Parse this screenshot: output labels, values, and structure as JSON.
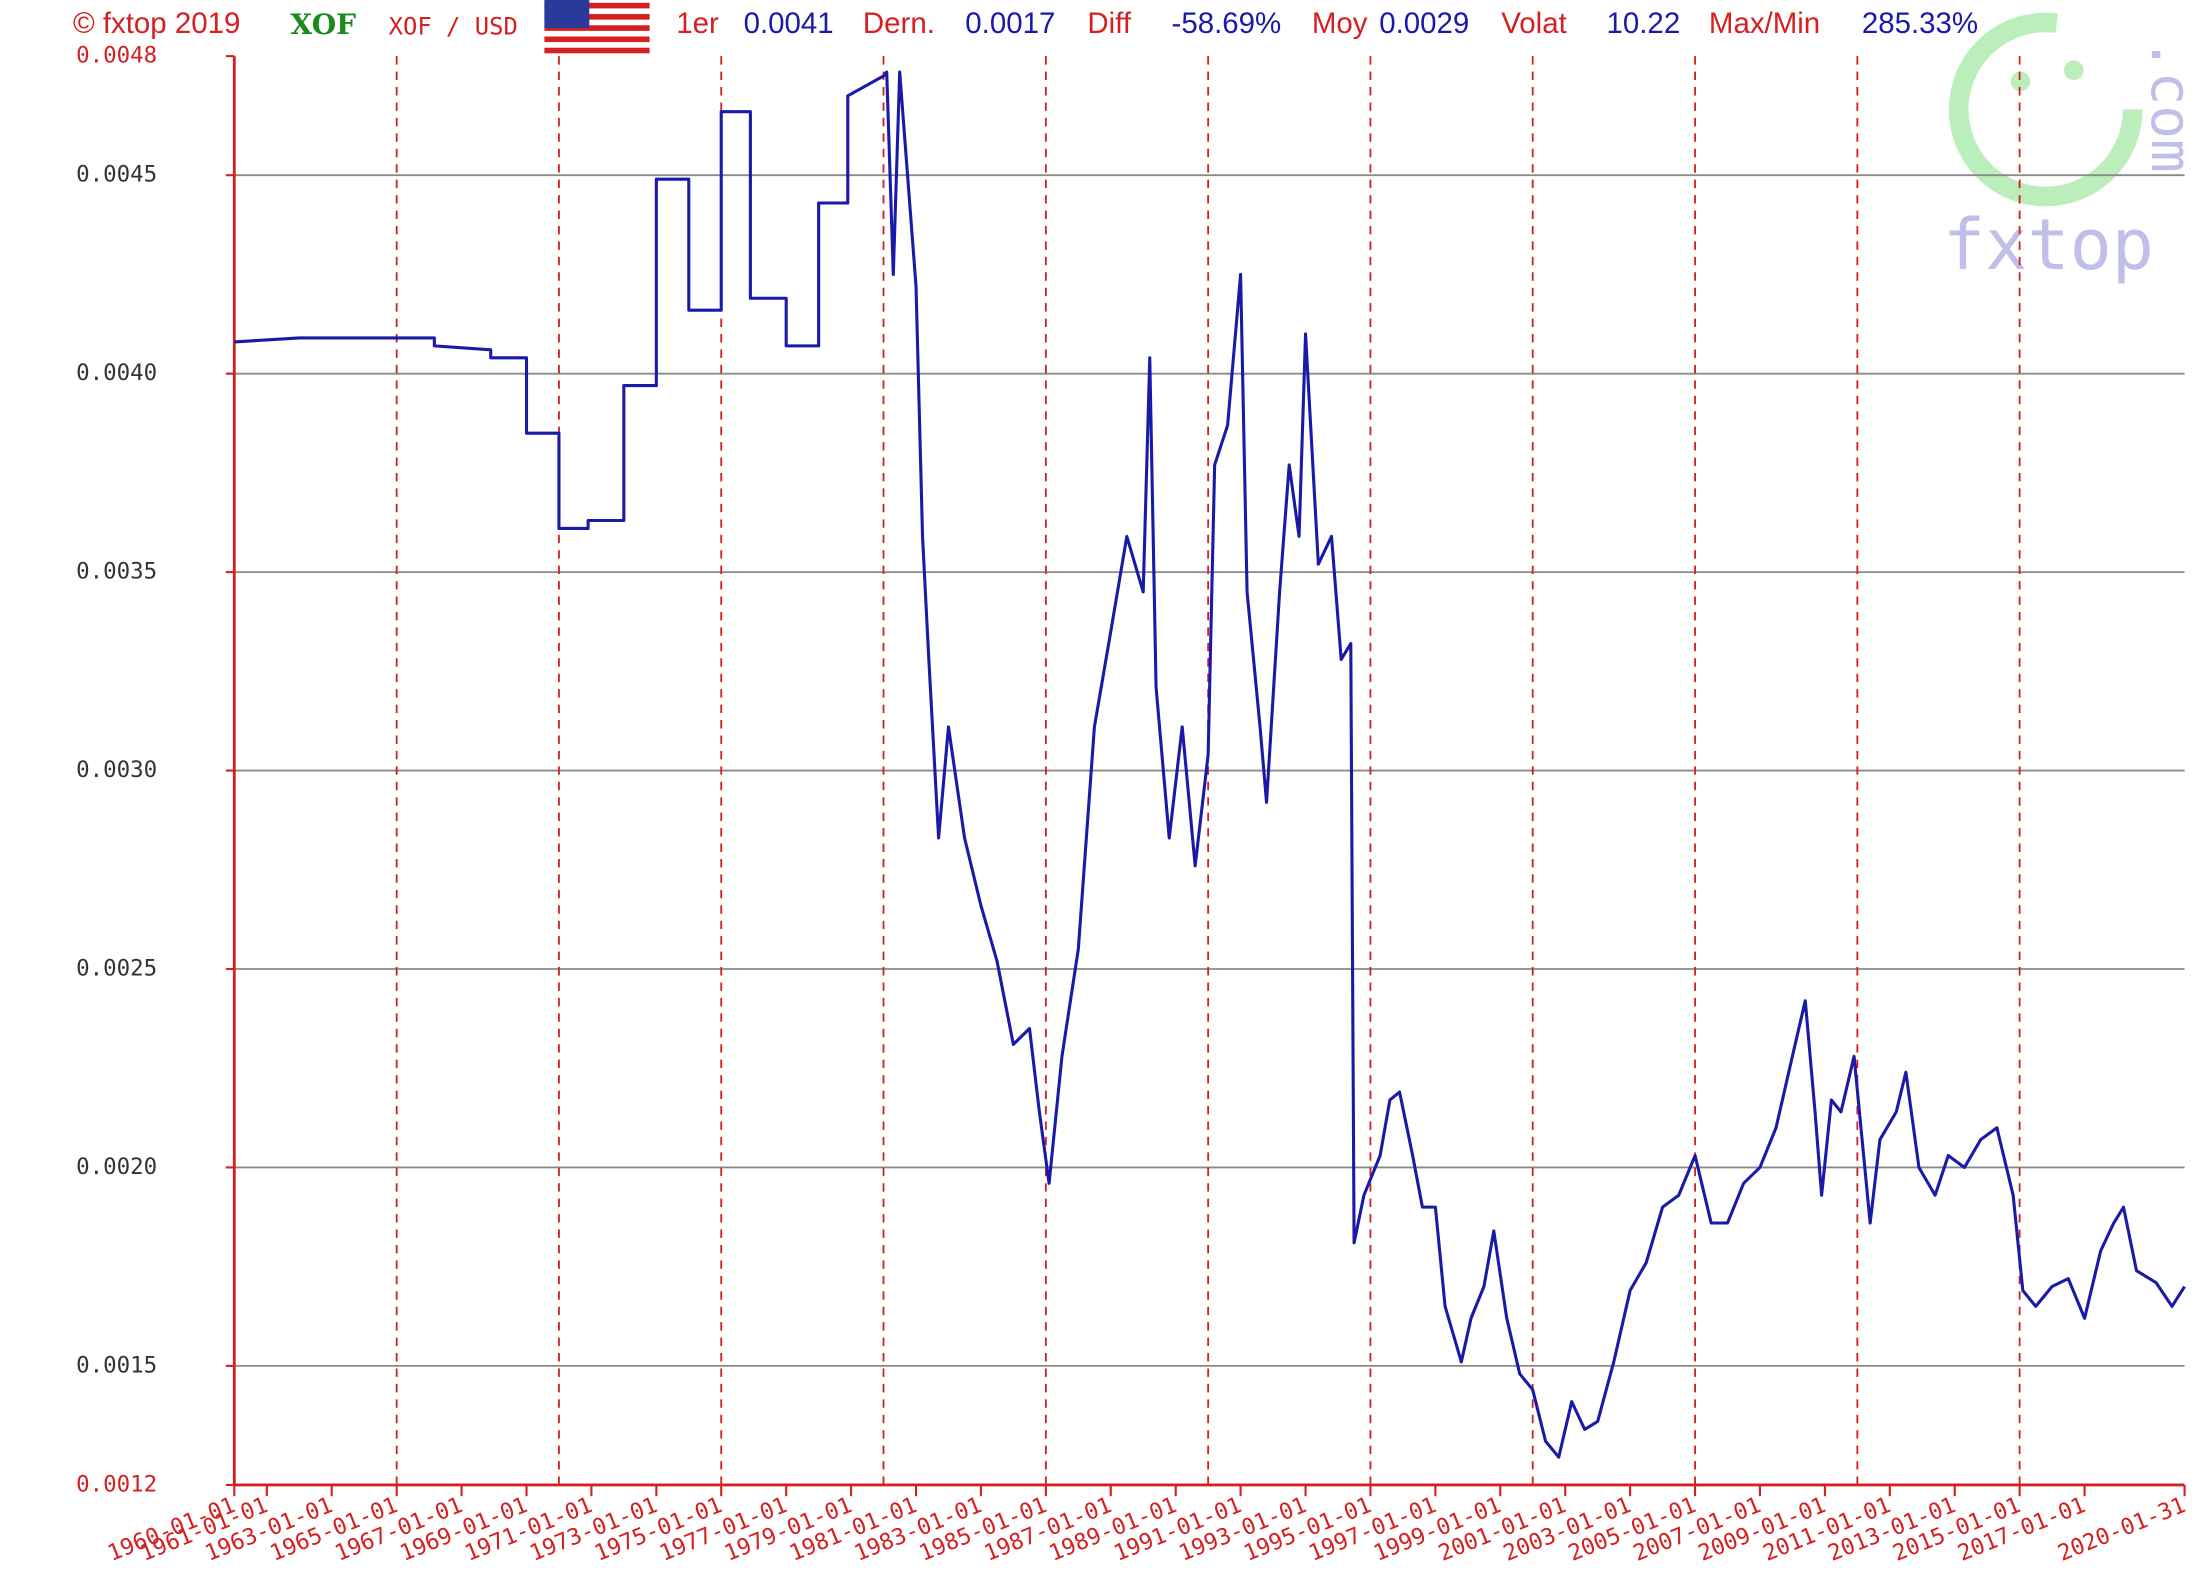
{
  "header": {
    "copyright": "© fxtop 2019",
    "currency": "XOF",
    "pair": "XOF / USD",
    "stats": [
      {
        "label": "1er",
        "value": "0.0041"
      },
      {
        "label": "Dern.",
        "value": "0.0017"
      },
      {
        "label": "Diff",
        "value": "-58.69%"
      },
      {
        "label": "Moy",
        "value": "0.0029"
      },
      {
        "label": "Volat",
        "value": "10.22"
      },
      {
        "label": "Max/Min",
        "value": "285.33%"
      }
    ],
    "watermark": "fxtop",
    "watermark_domain": ".com"
  },
  "chart_data": {
    "type": "line",
    "color": "#1a1aa8",
    "grid": true,
    "ylim": [
      0.0012,
      0.0048
    ],
    "yticks": [
      0.0012,
      0.0015,
      {
        "value": 0.002,
        "label": "0.0020"
      },
      0.0025,
      {
        "value": 0.003,
        "label": "0.0030"
      },
      0.0035,
      {
        "value": 0.004,
        "label": "0.0040"
      },
      0.0045,
      0.0048
    ],
    "xlim": [
      "1960-01-01",
      "2020-01-31"
    ],
    "xticks": [
      "1960-01-01",
      "1961-01-01",
      "1963-01-01",
      "1965-01-01",
      "1967-01-01",
      "1969-01-01",
      "1971-01-01",
      "1973-01-01",
      "1975-01-01",
      "1977-01-01",
      "1979-01-01",
      "1981-01-01",
      "1983-01-01",
      "1985-01-01",
      "1987-01-01",
      "1989-01-01",
      "1991-01-01",
      "1993-01-01",
      "1995-01-01",
      "1997-01-01",
      "1999-01-01",
      "2001-01-01",
      "2003-01-01",
      "2005-01-01",
      "2007-01-01",
      "2009-01-01",
      "2011-01-01",
      "2013-01-01",
      "2015-01-01",
      "2017-01-01",
      "2020-01-31"
    ],
    "xgrid": [
      "1965-01-01",
      "1970-01-01",
      "1975-01-01",
      "1980-01-01",
      "1985-01-01",
      "1990-01-01",
      "1995-01-01",
      "2000-01-01",
      "2005-01-01",
      "2010-01-01",
      "2015-01-01"
    ],
    "x": [
      "1960-01-01",
      "1962-01-01",
      "1966-03-01",
      "1966-03-01",
      "1967-11-25",
      "1967-11-25",
      "1969-01-01",
      "1969-01-01",
      "1970-01-01",
      "1970-01-01",
      "1970-11-25",
      "1970-11-25",
      "1972-01-01",
      "1972-01-01",
      "1973-01-01",
      "1973-01-01",
      "1974-01-01",
      "1974-01-01",
      "1975-01-01",
      "1975-01-01",
      "1975-11-25",
      "1975-11-25",
      "1977-01-01",
      "1977-01-01",
      "1978-01-01",
      "1978-01-01",
      "1978-11-25",
      "1978-11-25",
      "1980-01-01",
      "1980-02-06",
      "1980-04-20",
      "1980-07-01",
      "1981-01-01",
      "1981-03-15",
      "1981-05-25",
      "1981-09-12",
      "1982-01-01",
      "1982-07-01",
      "1983-01-01",
      "1983-07-01",
      "1984-01-01",
      "1984-07-01",
      "1984-10-20",
      "1985-02-06",
      "1985-07-01",
      "1986-01-01",
      "1986-07-01",
      "1987-01-01",
      "1987-07-01",
      "1988-01-01",
      "1988-03-15",
      "1988-05-25",
      "1988-10-20",
      "1989-03-15",
      "1989-08-08",
      "1990-01-01",
      "1990-03-15",
      "1990-08-08",
      "1991-01-01",
      "1991-03-15",
      "1991-08-08",
      "1991-10-20",
      "1992-03-15",
      "1992-07-01",
      "1992-10-20",
      "1993-01-01",
      "1993-05-25",
      "1993-10-20",
      "1994-02-06",
      "1994-05-25",
      "1994-07-01",
      "1994-10-20",
      "1995-04-20",
      "1995-08-08",
      "1995-11-25",
      "1996-04-20",
      "1996-08-08",
      "1997-01-01",
      "1997-04-20",
      "1997-10-20",
      "1998-02-06",
      "1998-07-01",
      "1998-10-20",
      "1999-03-15",
      "1999-08-08",
      "2000-01-01",
      "2000-05-25",
      "2000-10-20",
      "2001-03-15",
      "2001-08-08",
      "2002-01-01",
      "2002-07-01",
      "2003-01-01",
      "2003-07-01",
      "2004-01-01",
      "2004-07-01",
      "2005-01-01",
      "2005-07-01",
      "2006-01-01",
      "2006-07-01",
      "2007-01-01",
      "2007-07-01",
      "2008-01-01",
      "2008-05-25",
      "2008-09-12",
      "2008-11-25",
      "2009-03-15",
      "2009-07-01",
      "2009-11-25",
      "2010-05-25",
      "2010-09-12",
      "2011-03-15",
      "2011-07-01",
      "2011-11-25",
      "2012-05-25",
      "2012-10-20",
      "2013-04-20",
      "2013-10-20",
      "2014-04-20",
      "2014-10-20",
      "2015-02-06",
      "2015-07-01",
      "2016-01-01",
      "2016-07-01",
      "2017-01-01",
      "2017-07-01",
      "2017-11-25",
      "2018-03-15",
      "2018-08-08",
      "2019-03-15",
      "2019-09-12",
      "2020-01-31"
    ],
    "values": [
      0.00408,
      0.00409,
      0.00409,
      0.00407,
      0.00406,
      0.00404,
      0.00404,
      0.00385,
      0.00385,
      0.00361,
      0.00361,
      0.00363,
      0.00363,
      0.00397,
      0.00397,
      0.00449,
      0.00449,
      0.00416,
      0.00416,
      0.00466,
      0.00466,
      0.00419,
      0.00419,
      0.00407,
      0.00407,
      0.00443,
      0.00443,
      0.0047,
      0.00475,
      0.00476,
      0.00425,
      0.00476,
      0.00422,
      0.00359,
      0.00328,
      0.00283,
      0.00311,
      0.00283,
      0.00266,
      0.00252,
      0.00231,
      0.00235,
      0.00214,
      0.00196,
      0.00228,
      0.00255,
      0.00311,
      0.00335,
      0.00359,
      0.00345,
      0.00404,
      0.00321,
      0.00283,
      0.00311,
      0.00276,
      0.00304,
      0.00377,
      0.00387,
      0.00425,
      0.00345,
      0.00311,
      0.00292,
      0.00345,
      0.00377,
      0.00359,
      0.0041,
      0.00352,
      0.00359,
      0.00328,
      0.00332,
      0.00181,
      0.00193,
      0.00203,
      0.00217,
      0.00219,
      0.00203,
      0.0019,
      0.0019,
      0.00165,
      0.00151,
      0.00162,
      0.0017,
      0.00184,
      0.00162,
      0.00148,
      0.00144,
      0.00131,
      0.00127,
      0.00141,
      0.00134,
      0.00136,
      0.00151,
      0.00169,
      0.00176,
      0.0019,
      0.00193,
      0.00203,
      0.00186,
      0.00186,
      0.00196,
      0.002,
      0.0021,
      0.00228,
      0.00242,
      0.00214,
      0.00193,
      0.00217,
      0.00214,
      0.00228,
      0.00186,
      0.00207,
      0.00214,
      0.00224,
      0.002,
      0.00193,
      0.00203,
      0.002,
      0.00207,
      0.0021,
      0.00193,
      0.00169,
      0.00165,
      0.0017,
      0.00172,
      0.00162,
      0.00179,
      0.00186,
      0.0019,
      0.00174,
      0.00171,
      0.00165,
      0.0017
    ]
  }
}
